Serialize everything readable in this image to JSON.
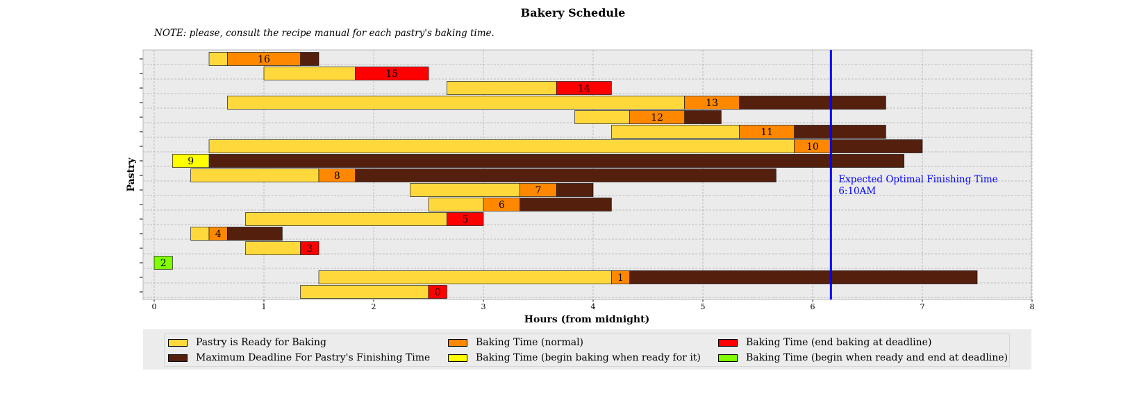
{
  "chart_data": {
    "type": "gantt",
    "title": "Bakery Schedule",
    "note": "NOTE: please, consult the recipe manual for each pastry's baking time.",
    "xlabel": "Hours (from midnight)",
    "ylabel": "Pastry",
    "xlim": [
      -0.1,
      8
    ],
    "xticks": [
      0,
      1,
      2,
      3,
      4,
      5,
      6,
      7,
      8
    ],
    "grid": true,
    "legend_placement": "below",
    "colors": {
      "ready": "#FFD93B",
      "deadline": "#551F0E",
      "normal": "#FF8800",
      "begin_ready": "#FFFF00",
      "end_deadline": "#FF0000",
      "both": "#7FFF00",
      "plot_bg": "#EBEBEB",
      "line": "#0000FF"
    },
    "deadline_line": {
      "x": 6.1667,
      "label_line1": "Expected Optimal Finishing Time",
      "label_line2": "6:10AM"
    },
    "legend": [
      {
        "key": "ready",
        "label": "Pastry is Ready for Baking"
      },
      {
        "key": "normal",
        "label": "Baking Time (normal)"
      },
      {
        "key": "end_deadline",
        "label": "Baking Time (end baking at deadline)"
      },
      {
        "key": "deadline",
        "label": "Maximum Deadline For Pastry's Finishing Time"
      },
      {
        "key": "begin_ready",
        "label": "Baking Time (begin baking when ready for it)"
      },
      {
        "key": "both",
        "label": "Baking Time (begin when ready and end at deadline)"
      }
    ],
    "pastries": [
      {
        "id": "0",
        "ready": 1.333,
        "bake_start": 2.5,
        "bake_end": 2.667,
        "deadline": 2.667,
        "bake_type": "end_deadline"
      },
      {
        "id": "1",
        "ready": 1.5,
        "bake_start": 4.167,
        "bake_end": 4.333,
        "deadline": 7.5,
        "bake_type": "normal"
      },
      {
        "id": "2",
        "ready": 0.0,
        "bake_start": 0.0,
        "bake_end": 0.167,
        "deadline": 0.167,
        "bake_type": "both"
      },
      {
        "id": "3",
        "ready": 0.833,
        "bake_start": 1.333,
        "bake_end": 1.5,
        "deadline": 1.5,
        "bake_type": "end_deadline"
      },
      {
        "id": "4",
        "ready": 0.333,
        "bake_start": 0.5,
        "bake_end": 0.667,
        "deadline": 1.167,
        "bake_type": "normal"
      },
      {
        "id": "5",
        "ready": 0.833,
        "bake_start": 2.667,
        "bake_end": 3.0,
        "deadline": 3.0,
        "bake_type": "end_deadline"
      },
      {
        "id": "6",
        "ready": 2.5,
        "bake_start": 3.0,
        "bake_end": 3.333,
        "deadline": 4.167,
        "bake_type": "normal"
      },
      {
        "id": "7",
        "ready": 2.333,
        "bake_start": 3.333,
        "bake_end": 3.667,
        "deadline": 4.0,
        "bake_type": "normal"
      },
      {
        "id": "8",
        "ready": 0.333,
        "bake_start": 1.5,
        "bake_end": 1.833,
        "deadline": 5.667,
        "bake_type": "normal"
      },
      {
        "id": "9",
        "ready": 0.167,
        "bake_start": 0.167,
        "bake_end": 0.5,
        "deadline": 6.833,
        "bake_type": "begin_ready"
      },
      {
        "id": "10",
        "ready": 0.5,
        "bake_start": 5.833,
        "bake_end": 6.167,
        "deadline": 7.0,
        "bake_type": "normal"
      },
      {
        "id": "11",
        "ready": 4.167,
        "bake_start": 5.333,
        "bake_end": 5.833,
        "deadline": 6.667,
        "bake_type": "normal"
      },
      {
        "id": "12",
        "ready": 3.833,
        "bake_start": 4.333,
        "bake_end": 4.833,
        "deadline": 5.167,
        "bake_type": "normal"
      },
      {
        "id": "13",
        "ready": 0.667,
        "bake_start": 4.833,
        "bake_end": 5.333,
        "deadline": 6.667,
        "bake_type": "normal"
      },
      {
        "id": "14",
        "ready": 2.667,
        "bake_start": 3.667,
        "bake_end": 4.167,
        "deadline": 4.167,
        "bake_type": "end_deadline"
      },
      {
        "id": "15",
        "ready": 1.0,
        "bake_start": 1.833,
        "bake_end": 2.5,
        "deadline": 2.5,
        "bake_type": "end_deadline"
      },
      {
        "id": "16",
        "ready": 0.5,
        "bake_start": 0.667,
        "bake_end": 1.333,
        "deadline": 1.5,
        "bake_type": "normal"
      }
    ]
  }
}
